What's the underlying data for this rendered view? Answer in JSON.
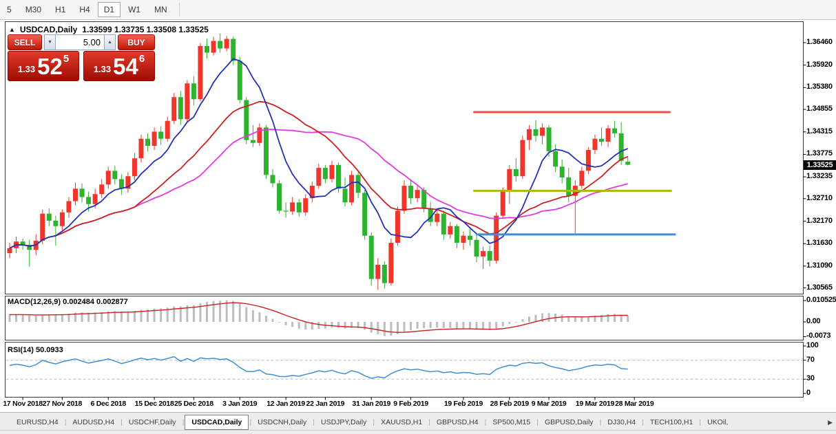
{
  "toolbar": {
    "timeframes": [
      "5",
      "M30",
      "H1",
      "H4",
      "D1",
      "W1",
      "MN"
    ],
    "active": "D1"
  },
  "chart": {
    "collapse_icon": "▲",
    "title": {
      "symbol": "USDCAD,Daily",
      "ohlc": "1.33599 1.33735 1.33508 1.33525"
    },
    "trade_panel": {
      "sell_label": "SELL",
      "buy_label": "BUY",
      "volume": "5.00",
      "spin_down_icon": "▼",
      "spin_up_icon": "▲",
      "sell_price": {
        "prefix": "1.33",
        "big": "52",
        "sup": "5"
      },
      "buy_price": {
        "prefix": "1.33",
        "big": "54",
        "sup": "6"
      }
    },
    "price_tag": "1.33525"
  },
  "chart_data": {
    "type": "candlestick",
    "symbol": "USDCAD",
    "period": "Daily",
    "current": {
      "open": 1.33599,
      "high": 1.33735,
      "low": 1.33508,
      "close": 1.33525
    },
    "y_axis_ticks": [
      {
        "text": "1.36460",
        "v": 1.3646
      },
      {
        "text": "1.35920",
        "v": 1.3592
      },
      {
        "text": "1.35380",
        "v": 1.3538
      },
      {
        "text": "1.34855",
        "v": 1.34855
      },
      {
        "text": "1.34315",
        "v": 1.34315
      },
      {
        "text": "1.33775",
        "v": 1.33775
      },
      {
        "text": "1.33235",
        "v": 1.33235
      },
      {
        "text": "1.32710",
        "v": 1.3271
      },
      {
        "text": "1.32170",
        "v": 1.3217
      },
      {
        "text": "1.31630",
        "v": 1.3163
      },
      {
        "text": "1.31090",
        "v": 1.3109
      },
      {
        "text": "1.30565",
        "v": 1.30565
      }
    ],
    "x_axis_labels": [
      {
        "text": "17 Nov 2018",
        "i": 2
      },
      {
        "text": "27 Nov 2018",
        "i": 8
      },
      {
        "text": "6 Dec 2018",
        "i": 15
      },
      {
        "text": "15 Dec 2018",
        "i": 22
      },
      {
        "text": "25 Dec 2018",
        "i": 28
      },
      {
        "text": "3 Jan 2019",
        "i": 35
      },
      {
        "text": "12 Jan 2019",
        "i": 42
      },
      {
        "text": "22 Jan 2019",
        "i": 48
      },
      {
        "text": "31 Jan 2019",
        "i": 55
      },
      {
        "text": "9 Feb 2019",
        "i": 61
      },
      {
        "text": "19 Feb 2019",
        "i": 69
      },
      {
        "text": "28 Feb 2019",
        "i": 76
      },
      {
        "text": "9 Mar 2019",
        "i": 82
      },
      {
        "text": "19 Mar 2019",
        "i": 89
      },
      {
        "text": "28 Mar 2019",
        "i": 95
      }
    ],
    "candles": [
      [
        1.314,
        1.3165,
        1.3128,
        1.3152
      ],
      [
        1.3152,
        1.318,
        1.314,
        1.3168
      ],
      [
        1.3168,
        1.3175,
        1.3148,
        1.316
      ],
      [
        1.316,
        1.3172,
        1.3108,
        1.3148
      ],
      [
        1.3148,
        1.3185,
        1.3135,
        1.317
      ],
      [
        1.317,
        1.3245,
        1.3162,
        1.3235
      ],
      [
        1.3235,
        1.3248,
        1.3205,
        1.3218
      ],
      [
        1.3218,
        1.323,
        1.3158,
        1.3205
      ],
      [
        1.3205,
        1.3245,
        1.3195,
        1.3238
      ],
      [
        1.3238,
        1.3275,
        1.3225,
        1.3265
      ],
      [
        1.3265,
        1.331,
        1.3255,
        1.3295
      ],
      [
        1.3295,
        1.3308,
        1.3262,
        1.3275
      ],
      [
        1.3275,
        1.3288,
        1.324,
        1.3258
      ],
      [
        1.3258,
        1.3295,
        1.3248,
        1.3282
      ],
      [
        1.3282,
        1.3318,
        1.3272,
        1.3305
      ],
      [
        1.3305,
        1.3348,
        1.3295,
        1.3338
      ],
      [
        1.3338,
        1.335,
        1.3305,
        1.3318
      ],
      [
        1.3318,
        1.333,
        1.328,
        1.3295
      ],
      [
        1.3295,
        1.3335,
        1.3285,
        1.3325
      ],
      [
        1.3325,
        1.338,
        1.3315,
        1.3368
      ],
      [
        1.3368,
        1.3425,
        1.3358,
        1.3415
      ],
      [
        1.3415,
        1.3428,
        1.3385,
        1.3398
      ],
      [
        1.3398,
        1.3442,
        1.3388,
        1.3432
      ],
      [
        1.3432,
        1.3445,
        1.34,
        1.3415
      ],
      [
        1.3415,
        1.3468,
        1.3408,
        1.3458
      ],
      [
        1.3458,
        1.3525,
        1.345,
        1.3515
      ],
      [
        1.3515,
        1.353,
        1.3448,
        1.3462
      ],
      [
        1.3462,
        1.3556,
        1.3455,
        1.3548
      ],
      [
        1.3548,
        1.3565,
        1.3495,
        1.351
      ],
      [
        1.351,
        1.3645,
        1.3505,
        1.3638
      ],
      [
        1.3638,
        1.3655,
        1.3608,
        1.3622
      ],
      [
        1.3622,
        1.366,
        1.3615,
        1.365
      ],
      [
        1.365,
        1.3668,
        1.3622,
        1.3632
      ],
      [
        1.3632,
        1.3662,
        1.3625,
        1.3655
      ],
      [
        1.3655,
        1.366,
        1.3592,
        1.3602
      ],
      [
        1.3602,
        1.3612,
        1.35,
        1.3508
      ],
      [
        1.3508,
        1.3515,
        1.3402,
        1.3412
      ],
      [
        1.3412,
        1.3448,
        1.3395,
        1.3405
      ],
      [
        1.3405,
        1.3452,
        1.3398,
        1.3442
      ],
      [
        1.3442,
        1.3448,
        1.3318,
        1.3328
      ],
      [
        1.3328,
        1.3342,
        1.3298,
        1.3308
      ],
      [
        1.3308,
        1.3315,
        1.3235,
        1.3242
      ],
      [
        1.3242,
        1.3262,
        1.3225,
        1.324
      ],
      [
        1.324,
        1.3275,
        1.3232,
        1.3262
      ],
      [
        1.3262,
        1.327,
        1.3228,
        1.3238
      ],
      [
        1.3238,
        1.3282,
        1.323,
        1.3272
      ],
      [
        1.3272,
        1.3312,
        1.3262,
        1.3302
      ],
      [
        1.3302,
        1.3355,
        1.3295,
        1.3345
      ],
      [
        1.3345,
        1.3352,
        1.3308,
        1.3318
      ],
      [
        1.3318,
        1.3362,
        1.331,
        1.3352
      ],
      [
        1.3352,
        1.3358,
        1.3285,
        1.3295
      ],
      [
        1.3295,
        1.3322,
        1.3252,
        1.3262
      ],
      [
        1.3262,
        1.3338,
        1.3255,
        1.3328
      ],
      [
        1.3328,
        1.3335,
        1.3272,
        1.3285
      ],
      [
        1.3285,
        1.3292,
        1.3172,
        1.3182
      ],
      [
        1.3182,
        1.319,
        1.3062,
        1.3078
      ],
      [
        1.3078,
        1.3128,
        1.3052,
        1.3112
      ],
      [
        1.3112,
        1.312,
        1.3055,
        1.3068
      ],
      [
        1.3068,
        1.3175,
        1.3062,
        1.3165
      ],
      [
        1.3165,
        1.3252,
        1.3158,
        1.3242
      ],
      [
        1.3242,
        1.3315,
        1.3235,
        1.3302
      ],
      [
        1.3302,
        1.3318,
        1.3258,
        1.3272
      ],
      [
        1.3272,
        1.3305,
        1.3262,
        1.3292
      ],
      [
        1.3292,
        1.3298,
        1.3238,
        1.3248
      ],
      [
        1.3248,
        1.3262,
        1.3205,
        1.3215
      ],
      [
        1.3215,
        1.3245,
        1.3205,
        1.3235
      ],
      [
        1.3235,
        1.3242,
        1.3172,
        1.3185
      ],
      [
        1.3185,
        1.3215,
        1.3175,
        1.3205
      ],
      [
        1.3205,
        1.321,
        1.3152,
        1.3165
      ],
      [
        1.3165,
        1.3192,
        1.3148,
        1.3182
      ],
      [
        1.3182,
        1.3198,
        1.3158,
        1.3172
      ],
      [
        1.3172,
        1.3185,
        1.3118,
        1.3132
      ],
      [
        1.3132,
        1.3155,
        1.3102,
        1.3145
      ],
      [
        1.3145,
        1.3158,
        1.3108,
        1.3122
      ],
      [
        1.3122,
        1.3238,
        1.3115,
        1.323
      ],
      [
        1.323,
        1.3298,
        1.3222,
        1.329
      ],
      [
        1.329,
        1.3352,
        1.3258,
        1.3342
      ],
      [
        1.3342,
        1.3368,
        1.3312,
        1.3325
      ],
      [
        1.3325,
        1.3422,
        1.3318,
        1.3412
      ],
      [
        1.3412,
        1.3448,
        1.3388,
        1.3438
      ],
      [
        1.3438,
        1.346,
        1.3408,
        1.3422
      ],
      [
        1.3422,
        1.3452,
        1.3402,
        1.3442
      ],
      [
        1.3442,
        1.3448,
        1.3372,
        1.3385
      ],
      [
        1.3385,
        1.3402,
        1.3335,
        1.3348
      ],
      [
        1.3348,
        1.3365,
        1.3308,
        1.3322
      ],
      [
        1.3322,
        1.3345,
        1.3262,
        1.3278
      ],
      [
        1.3278,
        1.3315,
        1.3185,
        1.3302
      ],
      [
        1.3302,
        1.3348,
        1.3295,
        1.3338
      ],
      [
        1.3338,
        1.3395,
        1.333,
        1.3388
      ],
      [
        1.3388,
        1.3425,
        1.3378,
        1.3415
      ],
      [
        1.3415,
        1.3442,
        1.3398,
        1.3408
      ],
      [
        1.3408,
        1.3448,
        1.3395,
        1.344
      ],
      [
        1.344,
        1.3458,
        1.3418,
        1.3428
      ],
      [
        1.3428,
        1.3455,
        1.3352,
        1.3362
      ],
      [
        1.33599,
        1.33735,
        1.33508,
        1.33525
      ]
    ],
    "moving_averages": [
      {
        "period": 8,
        "color_key": "ma_fast"
      },
      {
        "period": 20,
        "color_key": "ma_mid"
      },
      {
        "period": 30,
        "color_key": "ma_slow"
      }
    ],
    "h_lines": [
      {
        "price": 1.3479,
        "from_i": 70.5,
        "to_i": 100.5,
        "color_key": "hline_red"
      },
      {
        "price": 1.329,
        "from_i": 70.5,
        "to_i": 100.7,
        "color_key": "hline_olive"
      },
      {
        "price": 1.3185,
        "from_i": 71.0,
        "to_i": 101.3,
        "color_key": "hline_blue"
      }
    ]
  },
  "indicators": {
    "macd": {
      "label": "MACD(12,26,9)",
      "values": "0.002484 0.002877",
      "axis": [
        {
          "text": "0.010525",
          "v": 0.010525
        },
        {
          "text": "0.00",
          "v": 0
        },
        {
          "text": "-0.0073",
          "v": -0.0073
        }
      ]
    },
    "rsi": {
      "label": "RSI(14)",
      "value": "50.0933",
      "axis": [
        {
          "text": "100",
          "v": 100
        },
        {
          "text": "70",
          "v": 70
        },
        {
          "text": "30",
          "v": 30
        },
        {
          "text": "0",
          "v": 0
        }
      ],
      "levels": [
        70,
        30
      ]
    }
  },
  "tabs": {
    "scroll_icon": "▶",
    "items": [
      {
        "label": "EURUSD,H4"
      },
      {
        "label": "AUDUSD,H4"
      },
      {
        "label": "USDCHF,Daily"
      },
      {
        "label": "USDCAD,Daily",
        "active": true
      },
      {
        "label": "USDCNH,Daily"
      },
      {
        "label": "USDJPY,Daily"
      },
      {
        "label": "XAUUSD,H1"
      },
      {
        "label": "GBPUSD,H4"
      },
      {
        "label": "SP500,M15"
      },
      {
        "label": "GBPUSD,Daily"
      },
      {
        "label": "DJ30,H4"
      },
      {
        "label": "TECH100,H1"
      },
      {
        "label": "UKOil,"
      }
    ]
  },
  "colors": {
    "bull": "#f0352a",
    "bear": "#2db32d",
    "ma_fast": "#2432b4",
    "ma_mid": "#cc2020",
    "ma_slow": "#e23ae2",
    "macd_hist": "#bdbdbd",
    "macd_signal": "#cc2020",
    "rsi_line": "#3f8fd6",
    "hline_red": "#f05048",
    "hline_olive": "#aaba10",
    "hline_blue": "#3e8ed8",
    "price_tag_bg": "#000000"
  }
}
